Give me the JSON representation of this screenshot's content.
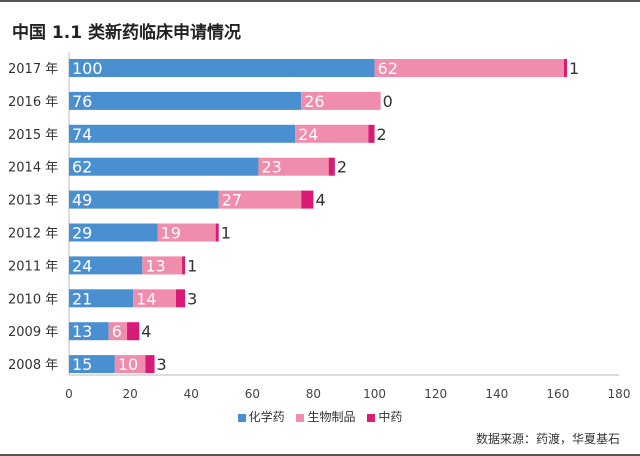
{
  "chart_data": {
    "type": "bar",
    "orientation": "horizontal",
    "stacked": true,
    "title": "中国 1.1 类新药临床申请情况",
    "categories": [
      "2017 年",
      "2016 年",
      "2015 年",
      "2014 年",
      "2013 年",
      "2012 年",
      "2011 年",
      "2010 年",
      "2009 年",
      "2008 年"
    ],
    "series": [
      {
        "name": "化学药",
        "color": "#4a90d0",
        "values": [
          100,
          76,
          74,
          62,
          49,
          29,
          24,
          21,
          13,
          15
        ]
      },
      {
        "name": "生物制品",
        "color": "#f08cac",
        "values": [
          62,
          26,
          24,
          23,
          27,
          19,
          13,
          14,
          6,
          10
        ]
      },
      {
        "name": "中药",
        "color": "#d81b74",
        "values": [
          1,
          0,
          2,
          2,
          4,
          1,
          1,
          3,
          4,
          3
        ]
      }
    ],
    "xlim": [
      0,
      180
    ],
    "xticks": [
      "0",
      "20",
      "40",
      "60",
      "80",
      "100",
      "120",
      "140",
      "160",
      "180"
    ],
    "legend_position": "bottom",
    "source": "数据来源：药渡，华夏基石"
  }
}
